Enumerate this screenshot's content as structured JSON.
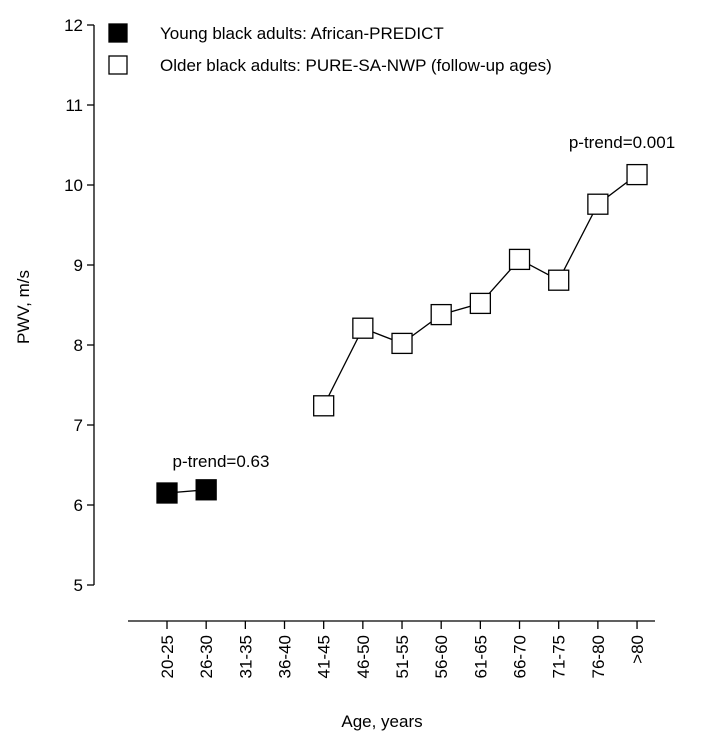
{
  "chart_data": {
    "type": "line",
    "xlabel": "Age, years",
    "ylabel": "PWV, m/s",
    "categories": [
      "20-25",
      "26-30",
      "31-35",
      "36-40",
      "41-45",
      "46-50",
      "51-55",
      "56-60",
      "61-65",
      "66-70",
      "71-75",
      "76-80",
      ">80"
    ],
    "yticks": [
      "5",
      "6",
      "7",
      "8",
      "9",
      "10",
      "11",
      "12"
    ],
    "ylim": [
      5,
      12
    ],
    "grid": false,
    "legend_position": "top-left",
    "series": [
      {
        "name": "Young black adults: African-PREDICT",
        "marker": "filled-square",
        "color": "#000000",
        "points": [
          {
            "category": "20-25",
            "value": 6.15
          },
          {
            "category": "26-30",
            "value": 6.19
          }
        ]
      },
      {
        "name": "Older black adults: PURE-SA-NWP (follow-up ages)",
        "marker": "open-square",
        "color": "#000000",
        "points": [
          {
            "category": "41-45",
            "value": 7.24
          },
          {
            "category": "46-50",
            "value": 8.21
          },
          {
            "category": "51-55",
            "value": 8.02
          },
          {
            "category": "56-60",
            "value": 8.38
          },
          {
            "category": "61-65",
            "value": 8.52
          },
          {
            "category": "66-70",
            "value": 9.07
          },
          {
            "category": "71-75",
            "value": 8.81
          },
          {
            "category": "76-80",
            "value": 9.76
          },
          {
            "category": ">80",
            "value": 10.13
          }
        ]
      }
    ],
    "annotations": [
      {
        "text": "p-trend=0.63",
        "series": 0
      },
      {
        "text": "p-trend=0.001",
        "series": 1
      }
    ]
  }
}
